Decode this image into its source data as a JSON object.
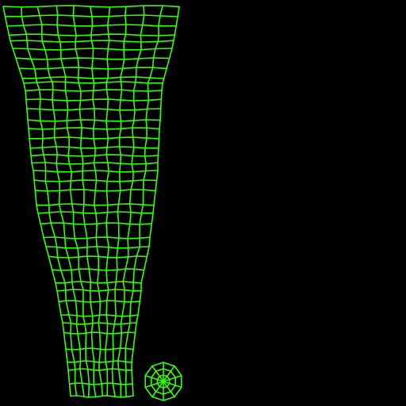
{
  "view": {
    "background_color": "#000000",
    "wire_color": "#33ff00"
  },
  "islands": [
    {
      "name": "tapered-sleeve-island",
      "kind": "quad-grid",
      "columns": 10,
      "ring_count": 30
    },
    {
      "name": "circular-cap-island",
      "kind": "radial-fan",
      "segments": 10,
      "rings": 3
    }
  ]
}
